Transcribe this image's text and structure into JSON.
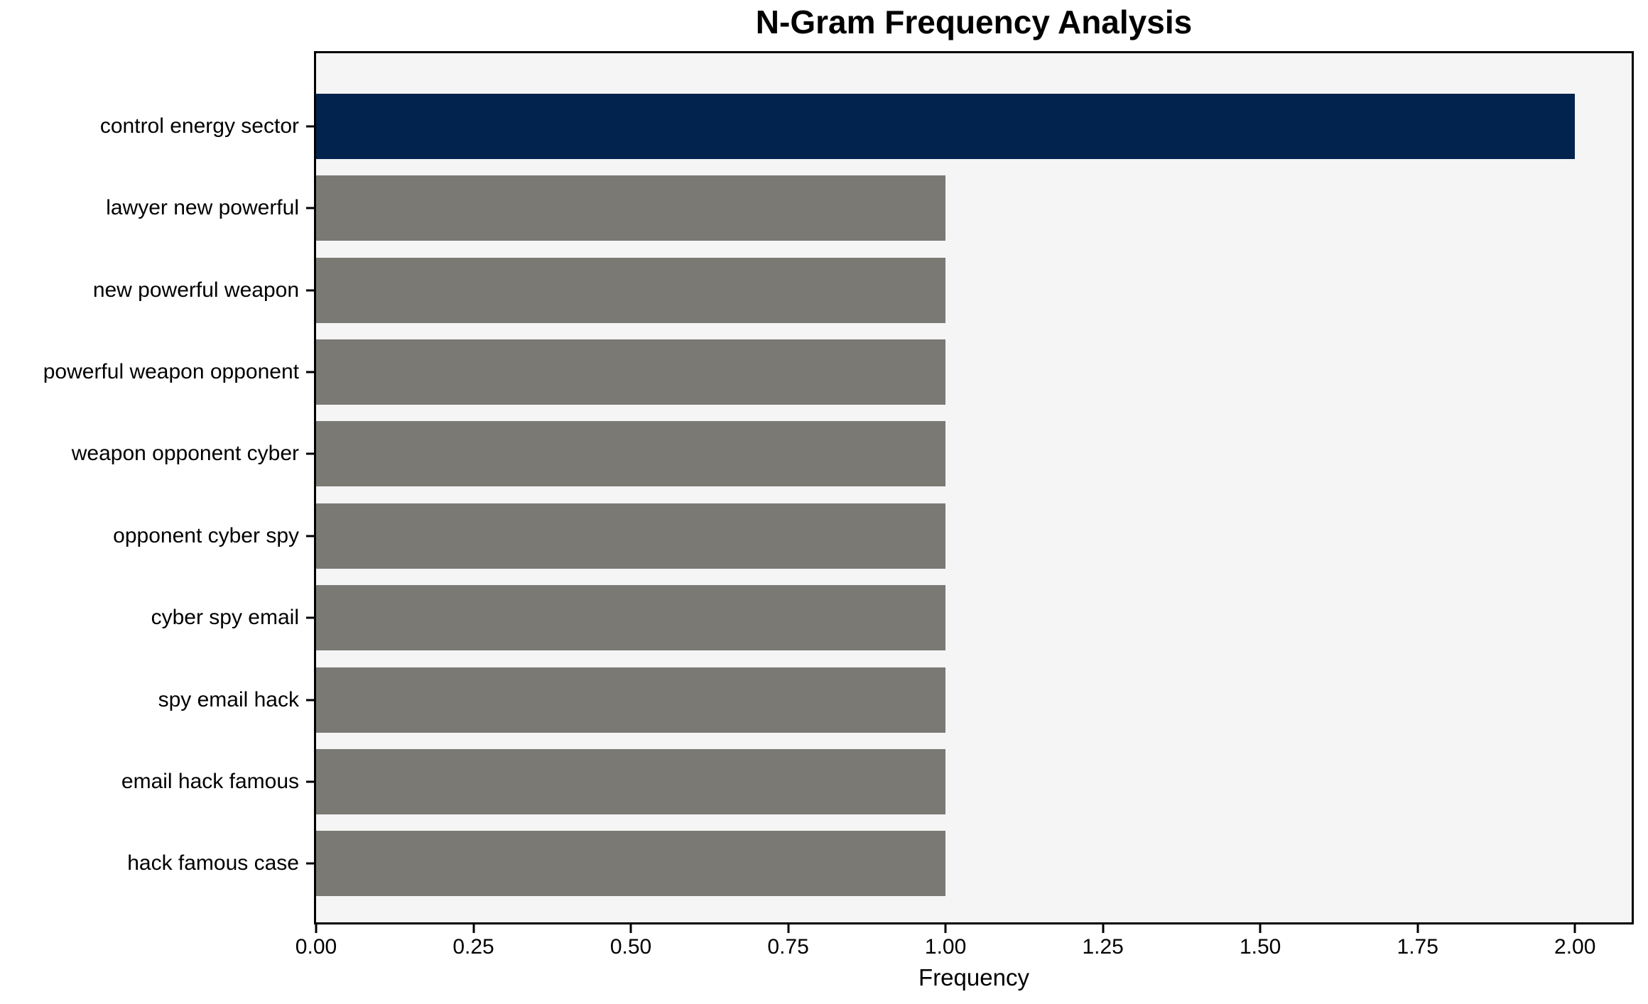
{
  "chart_data": {
    "type": "bar",
    "orientation": "horizontal",
    "title": "N-Gram Frequency Analysis",
    "xlabel": "Frequency",
    "ylabel": "",
    "categories": [
      "control energy sector",
      "lawyer new powerful",
      "new powerful weapon",
      "powerful weapon opponent",
      "weapon opponent cyber",
      "opponent cyber spy",
      "cyber spy email",
      "spy email hack",
      "email hack famous",
      "hack famous case"
    ],
    "values": [
      2,
      1,
      1,
      1,
      1,
      1,
      1,
      1,
      1,
      1
    ],
    "xlim": [
      0,
      2.09
    ],
    "xticks": [
      0.0,
      0.25,
      0.5,
      0.75,
      1.0,
      1.25,
      1.5,
      1.75,
      2.0
    ],
    "xtick_labels": [
      "0.00",
      "0.25",
      "0.50",
      "0.75",
      "1.00",
      "1.25",
      "1.50",
      "1.75",
      "2.00"
    ],
    "grid": false,
    "legend_position": "none",
    "highlight_index": 0,
    "colors": {
      "highlight_bar": "#02234e",
      "default_bar": "#7b7974",
      "plot_background": "#f5f5f5",
      "figure_background": "#ffffff",
      "spine": "#000000",
      "text": "#000000"
    }
  }
}
